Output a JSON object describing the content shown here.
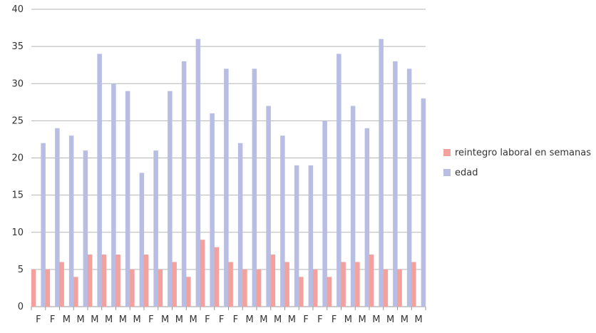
{
  "chart_data": {
    "type": "bar",
    "categories": [
      "F",
      "F",
      "M",
      "M",
      "M",
      "M",
      "M",
      "M",
      "F",
      "M",
      "M",
      "M",
      "F",
      "F",
      "F",
      "M",
      "M",
      "M",
      "M",
      "F",
      "F",
      "F",
      "M",
      "M",
      "M",
      "M",
      "M",
      "M"
    ],
    "series": [
      {
        "name": "reintegro laboral en semanas",
        "color": "#f4a09c",
        "values": [
          5,
          5,
          6,
          4,
          7,
          7,
          7,
          5,
          7,
          5,
          6,
          4,
          9,
          8,
          6,
          5,
          5,
          7,
          6,
          4,
          5,
          4,
          6,
          6,
          7,
          5,
          5,
          6
        ]
      },
      {
        "name": "edad",
        "color": "#b7bde3",
        "values": [
          22,
          24,
          23,
          21,
          34,
          30,
          29,
          18,
          21,
          29,
          33,
          36,
          26,
          32,
          22,
          32,
          27,
          23,
          19,
          19,
          25,
          34,
          27,
          24,
          36,
          33,
          32,
          28
        ]
      }
    ],
    "ylim": [
      0,
      40
    ],
    "yticks": [
      0,
      5,
      10,
      15,
      20,
      25,
      30,
      35,
      40
    ],
    "grid": true,
    "legend_position": "right"
  }
}
